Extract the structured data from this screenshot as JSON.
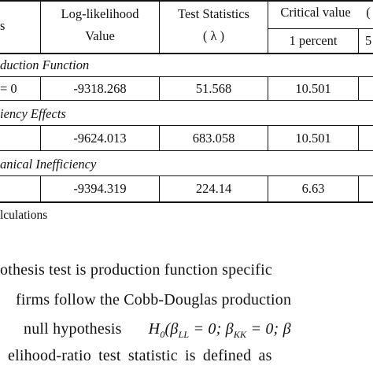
{
  "table": {
    "headers": {
      "col_hypothesis": "s",
      "log_likelihood_line1": "Log-likelihood",
      "log_likelihood_line2": "Value",
      "test_stat_line1": "Test Statistics",
      "test_stat_line2": "( λ )",
      "critical_value": "Critical value",
      "critical_value_next": "(",
      "one_percent": "1 percent",
      "five_percent_partial": "5"
    },
    "sections": [
      {
        "title": "duction Function",
        "row": {
          "hypothesis": "= 0",
          "log_likelihood": "-9318.268",
          "test_statistic": "51.568",
          "critical_1pct": "10.501"
        }
      },
      {
        "title": "iency Effects",
        "row": {
          "hypothesis": "",
          "log_likelihood": "-9624.013",
          "test_statistic": "683.058",
          "critical_1pct": "10.501"
        }
      },
      {
        "title": "anical Inefficiency",
        "row": {
          "hypothesis": "",
          "log_likelihood": "-9394.319",
          "test_statistic": "224.14",
          "critical_1pct": "6.63"
        }
      }
    ],
    "source_note": "lculations"
  },
  "paragraph": {
    "line1": "othesis test is production function specific",
    "line2": "firms follow the Cobb-Douglas production",
    "line3_prefix": "null   hypothesis",
    "line3_math": "H",
    "line3_math_sub": "0",
    "line3_math_rest": "(β",
    "line3_sub_ll": "LL",
    "line3_mid": " = 0; β",
    "line3_sub_kk": "KK",
    "line3_end": " = 0; β",
    "line4": "elihood-ratio  test  statistic  is  defined  as"
  }
}
